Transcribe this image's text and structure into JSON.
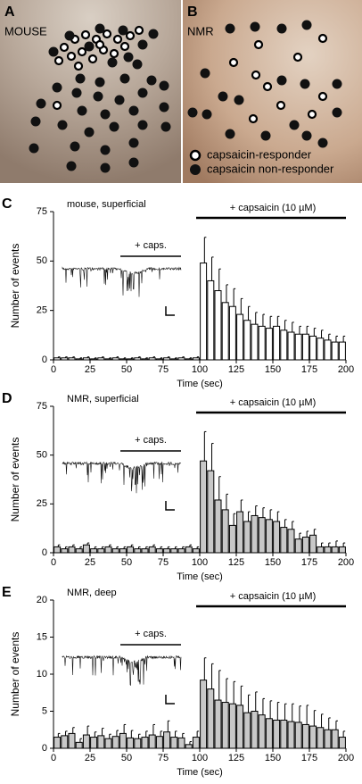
{
  "images": {
    "A": {
      "label": "A",
      "title": "MOUSE"
    },
    "B": {
      "label": "B",
      "title": "NMR",
      "legend": [
        "capsaicin-responder",
        "capsaicin non-responder"
      ]
    }
  },
  "chart_data": [
    {
      "type": "histogram",
      "panel_label": "C",
      "title": "mouse, superficial",
      "annotations": [
        "+ caps.",
        "+ capsaicin (10 µM)"
      ],
      "xlabel": "Time (sec)",
      "ylabel": "Number of events",
      "color": "#ffffff",
      "bins": [
        0,
        5,
        10,
        15,
        20,
        25,
        30,
        35,
        40,
        45,
        50,
        55,
        60,
        65,
        70,
        75,
        80,
        85,
        90,
        95,
        100,
        105,
        110,
        115,
        120,
        125,
        130,
        135,
        140,
        145,
        150,
        155,
        160,
        165,
        170,
        175,
        180,
        185,
        190,
        195,
        200
      ],
      "values": [
        1,
        1,
        1,
        0.5,
        1,
        0.5,
        1,
        0.5,
        1,
        0.5,
        0.5,
        1,
        0.5,
        1,
        0.5,
        1,
        0.5,
        1,
        0.5,
        1,
        49,
        40,
        35,
        29,
        27,
        23,
        20,
        18,
        17,
        16,
        17,
        15,
        14,
        13,
        13,
        12,
        11,
        10,
        9,
        9
      ],
      "errors": [
        0.5,
        0.5,
        0.5,
        0.5,
        0.5,
        0.5,
        0.5,
        0.5,
        0.5,
        0.5,
        0.5,
        0.5,
        0.5,
        0.5,
        0.5,
        0.5,
        0.5,
        0.5,
        0.5,
        0.5,
        13,
        12,
        11,
        9,
        9,
        8,
        7,
        6,
        6,
        6,
        5,
        5,
        5,
        4,
        4,
        4,
        4,
        3,
        3,
        3
      ],
      "xlim": [
        0,
        200
      ],
      "ylim": [
        0,
        75
      ],
      "xticks": [
        0,
        25,
        50,
        75,
        100,
        125,
        150,
        175,
        200
      ],
      "yticks": [
        0,
        25,
        50,
        75
      ]
    },
    {
      "type": "histogram",
      "panel_label": "D",
      "title": "NMR, superficial",
      "annotations": [
        "+ caps.",
        "+ capsaicin (10 µM)"
      ],
      "xlabel": "Time (sec)",
      "ylabel": "Number of events",
      "color": "#c8c8c8",
      "bins": [
        0,
        5,
        10,
        15,
        20,
        25,
        30,
        35,
        40,
        45,
        50,
        55,
        60,
        65,
        70,
        75,
        80,
        85,
        90,
        95,
        100,
        105,
        110,
        115,
        120,
        125,
        130,
        135,
        140,
        145,
        150,
        155,
        160,
        165,
        170,
        175,
        180,
        185,
        190,
        195,
        200
      ],
      "values": [
        3,
        2,
        3,
        2,
        4,
        2,
        2,
        3,
        2,
        2,
        3,
        2,
        2,
        3,
        2,
        2,
        2,
        2,
        3,
        2,
        47,
        42,
        27,
        22,
        14,
        21,
        16,
        19,
        18,
        17,
        16,
        13,
        12,
        7,
        8,
        9,
        3,
        3,
        3,
        3
      ],
      "errors": [
        1,
        1,
        1,
        1,
        1,
        1,
        1,
        1,
        1,
        1,
        1,
        1,
        1,
        1,
        1,
        1,
        1,
        1,
        1,
        1,
        15,
        14,
        12,
        8,
        6,
        6,
        5,
        5,
        5,
        5,
        5,
        4,
        4,
        3,
        3,
        3,
        2,
        2,
        3,
        2
      ],
      "xlim": [
        0,
        200
      ],
      "ylim": [
        0,
        75
      ],
      "xticks": [
        0,
        25,
        50,
        75,
        100,
        125,
        150,
        175,
        200
      ],
      "yticks": [
        0,
        25,
        50,
        75
      ]
    },
    {
      "type": "histogram",
      "panel_label": "E",
      "title": "NMR, deep",
      "annotations": [
        "+ caps.",
        "+ capsaicin (10 µM)"
      ],
      "xlabel": "Time (sec)",
      "ylabel": "Number of events",
      "color": "#c8c8c8",
      "bins": [
        0,
        5,
        10,
        15,
        20,
        25,
        30,
        35,
        40,
        45,
        50,
        55,
        60,
        65,
        70,
        75,
        80,
        85,
        90,
        95,
        100,
        105,
        110,
        115,
        120,
        125,
        130,
        135,
        140,
        145,
        150,
        155,
        160,
        165,
        170,
        175,
        180,
        185,
        190,
        195,
        200
      ],
      "values": [
        1.5,
        1.7,
        2,
        0.8,
        1.8,
        1.5,
        1.7,
        1.3,
        1.6,
        2,
        1.4,
        1.3,
        1.5,
        1.8,
        1.6,
        2.2,
        1.5,
        1.4,
        0.5,
        1.5,
        9.2,
        8,
        6.5,
        6.2,
        6,
        5.8,
        4.8,
        5,
        4.5,
        4,
        3.8,
        3.8,
        3.6,
        3.5,
        3.2,
        3,
        2.8,
        2.5,
        2.5,
        1.5
      ],
      "errors": [
        0.5,
        0.6,
        0.8,
        0.5,
        1.2,
        0.7,
        1,
        0.6,
        0.8,
        1.2,
        1,
        0.6,
        0.8,
        1.4,
        0.7,
        1.5,
        0.8,
        0.6,
        0.4,
        0.8,
        3,
        3.4,
        4,
        3.2,
        3,
        2.6,
        2.4,
        2.6,
        2.2,
        2.4,
        2.4,
        2.2,
        2.4,
        2.2,
        2.6,
        2.1,
        1.8,
        1.6,
        1.2,
        0.8
      ],
      "xlim": [
        0,
        200
      ],
      "ylim": [
        0,
        20
      ],
      "xticks": [
        0,
        25,
        50,
        75,
        100,
        125,
        150,
        175,
        200
      ],
      "yticks": [
        0,
        5,
        10,
        15,
        20
      ]
    }
  ]
}
